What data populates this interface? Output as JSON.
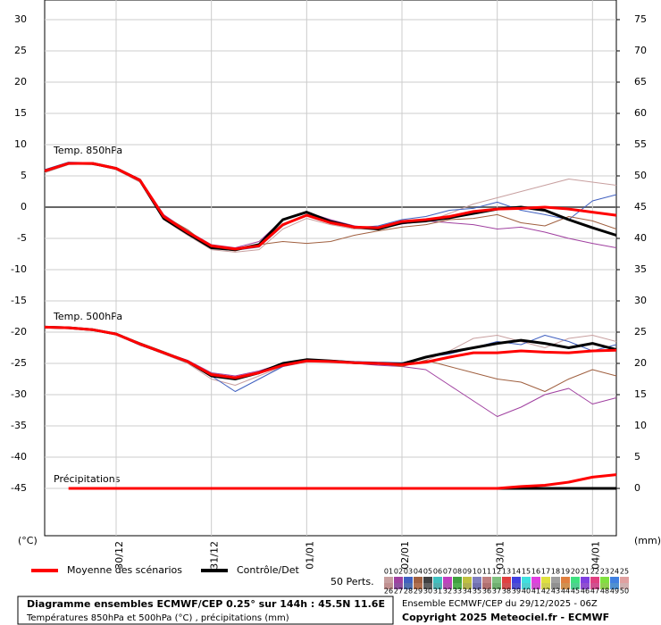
{
  "chart_data": {
    "type": "line",
    "x": [
      0,
      6,
      12,
      18,
      24,
      30,
      36,
      42,
      48,
      54,
      60,
      66,
      72,
      78,
      84,
      90,
      96,
      102,
      108,
      114,
      120,
      126,
      132,
      138,
      144
    ],
    "xlim": [
      0,
      144
    ],
    "xticks": [
      {
        "value": 18,
        "label": "30/12"
      },
      {
        "value": 42,
        "label": "31/12"
      },
      {
        "value": 66,
        "label": "01/01"
      },
      {
        "value": 90,
        "label": "02/01"
      },
      {
        "value": 114,
        "label": "03/01"
      },
      {
        "value": 138,
        "label": "04/01"
      }
    ],
    "ylim": [
      -52.57,
      33.14
    ],
    "yticks": [
      30,
      25,
      20,
      15,
      10,
      5,
      0,
      -5,
      -10,
      -15,
      -20,
      -25,
      -30,
      -35,
      -40,
      -45
    ],
    "y2lim": [
      -7.57,
      78.14
    ],
    "y2ticks": [
      75,
      70,
      65,
      60,
      55,
      50,
      45,
      40,
      35,
      30,
      25,
      20,
      15,
      10,
      5,
      0
    ],
    "y_unit": "(°C)",
    "y2_unit": "(mm)",
    "grid": true,
    "group_labels": {
      "t850": "Temp. 850hPa",
      "t500": "Temp. 500hPa",
      "precip": "Précipitations"
    },
    "series": [
      {
        "name": "Moyenne des scénarios",
        "color": "#ff0000",
        "t850": [
          5.8,
          7.0,
          7.0,
          6.2,
          4.3,
          -1.5,
          -4.0,
          -6.2,
          -6.7,
          -6.2,
          -2.8,
          -1.3,
          -2.5,
          -3.2,
          -3.3,
          -2.3,
          -2.0,
          -1.5,
          -0.7,
          -0.3,
          -0.2,
          0.0,
          -0.3,
          -0.8,
          -1.3
        ],
        "t500": [
          -19.2,
          -19.3,
          -19.6,
          -20.3,
          -21.9,
          -23.3,
          -24.7,
          -26.8,
          -27.3,
          -26.5,
          -25.3,
          -24.6,
          -24.7,
          -24.9,
          -25.0,
          -25.2,
          -24.8,
          -24.0,
          -23.3,
          -23.3,
          -23.0,
          -23.2,
          -23.3,
          -23.0,
          -22.9
        ],
        "precip": [
          null,
          0,
          0,
          0,
          0,
          0,
          0,
          0,
          0,
          0,
          0,
          0,
          0,
          0,
          0,
          0,
          0,
          0,
          0,
          0,
          0.3,
          0.5,
          1.0,
          1.8,
          2.2
        ]
      },
      {
        "name": "Contrôle/Det",
        "color": "#000000",
        "t850": [
          5.8,
          7.0,
          7.0,
          6.2,
          4.3,
          -1.8,
          -4.2,
          -6.5,
          -6.8,
          -6.0,
          -2.0,
          -0.8,
          -2.3,
          -3.2,
          -3.5,
          -2.5,
          -2.2,
          -1.7,
          -1.0,
          -0.3,
          0.0,
          -0.5,
          -2.0,
          -3.3,
          -4.5
        ],
        "t500": [
          -19.2,
          -19.3,
          -19.6,
          -20.3,
          -21.9,
          -23.3,
          -24.7,
          -27.0,
          -27.5,
          -26.5,
          -25.0,
          -24.4,
          -24.6,
          -24.9,
          -25.0,
          -25.1,
          -24.0,
          -23.2,
          -22.5,
          -21.8,
          -21.3,
          -21.8,
          -22.5,
          -21.8,
          -22.8
        ],
        "precip": [
          null,
          null,
          null,
          null,
          null,
          null,
          null,
          null,
          null,
          null,
          null,
          null,
          null,
          null,
          null,
          0,
          0,
          0,
          0,
          0,
          0,
          0,
          0,
          0,
          0
        ]
      }
    ],
    "perturbations": {
      "label": "50 Perts.",
      "members": [
        {
          "name": "01",
          "color": "#c8a0a0",
          "t850": [
            5.5,
            6.8,
            6.9,
            6.0,
            4.0,
            -2.0,
            -4.5,
            -6.8,
            -7.2,
            -6.8,
            -3.5,
            -1.8,
            -2.8,
            -3.5,
            -3.2,
            -2.6,
            -2.4,
            -1.0,
            0.5,
            1.5,
            2.5,
            3.5,
            4.5,
            4.0,
            3.5
          ],
          "t500": [
            -19.2,
            -19.3,
            -19.6,
            -20.3,
            -22.0,
            -23.5,
            -25.0,
            -27.5,
            -28.5,
            -27.0,
            -25.5,
            -24.8,
            -24.6,
            -24.8,
            -25.2,
            -25.5,
            -24.5,
            -23.0,
            -21.0,
            -20.5,
            -21.5,
            -22.5,
            -21.0,
            -20.5,
            -21.5
          ]
        },
        {
          "name": "02",
          "color": "#a040a0",
          "t850": [
            5.9,
            7.1,
            7.0,
            6.3,
            4.5,
            -1.2,
            -3.8,
            -6.0,
            -6.5,
            -5.5,
            -2.0,
            -0.8,
            -2.0,
            -3.0,
            -3.4,
            -2.7,
            -2.2,
            -2.5,
            -2.8,
            -3.5,
            -3.2,
            -4.0,
            -5.0,
            -5.8,
            -6.5
          ],
          "t500": [
            -19.2,
            -19.3,
            -19.6,
            -20.2,
            -21.8,
            -23.2,
            -24.5,
            -26.5,
            -27.0,
            -26.2,
            -25.0,
            -24.5,
            -24.8,
            -25.0,
            -25.3,
            -25.5,
            -26.0,
            -28.5,
            -31.0,
            -33.5,
            -32.0,
            -30.0,
            -29.0,
            -31.5,
            -30.5
          ]
        },
        {
          "name": "03",
          "color": "#4060c0",
          "t850": [
            6.0,
            7.2,
            7.1,
            6.1,
            4.2,
            -1.8,
            -4.2,
            -6.3,
            -6.9,
            -6.4,
            -3.0,
            -1.2,
            -2.3,
            -3.3,
            -3.0,
            -2.0,
            -1.5,
            -0.5,
            -0.2,
            0.8,
            -0.5,
            -1.2,
            -2.0,
            1.0,
            2.0
          ],
          "t500": [
            -19.2,
            -19.3,
            -19.6,
            -20.4,
            -22.1,
            -23.4,
            -24.8,
            -27.0,
            -29.5,
            -27.5,
            -25.5,
            -24.7,
            -24.5,
            -24.7,
            -24.8,
            -24.9,
            -24.0,
            -23.5,
            -22.5,
            -21.5,
            -22.0,
            -20.5,
            -21.5,
            -23.0,
            -22.0
          ]
        },
        {
          "name": "04",
          "color": "#a06040",
          "t850": [
            5.7,
            6.9,
            6.8,
            6.2,
            4.4,
            -1.4,
            -3.6,
            -6.5,
            -7.0,
            -6.0,
            -5.5,
            -5.8,
            -5.5,
            -4.5,
            -3.8,
            -3.2,
            -2.8,
            -2.0,
            -1.8,
            -1.2,
            -2.5,
            -3.0,
            -1.5,
            -2.2,
            -3.5
          ],
          "t500": [
            -19.2,
            -19.3,
            -19.5,
            -20.2,
            -21.7,
            -23.1,
            -24.6,
            -26.6,
            -27.2,
            -26.4,
            -25.2,
            -24.4,
            -24.8,
            -25.0,
            -25.0,
            -25.5,
            -24.5,
            -25.5,
            -26.5,
            -27.5,
            -28.0,
            -29.5,
            -27.5,
            -26.0,
            -27.0
          ]
        },
        {
          "name": "05",
          "color": "#404040"
        },
        {
          "name": "06",
          "color": "#40c0c0"
        },
        {
          "name": "07",
          "color": "#c040c0"
        },
        {
          "name": "08",
          "color": "#40a040"
        },
        {
          "name": "09",
          "color": "#c0c040"
        },
        {
          "name": "10",
          "color": "#8080c0"
        },
        {
          "name": "11",
          "color": "#c08080"
        },
        {
          "name": "12",
          "color": "#80c080"
        },
        {
          "name": "13",
          "color": "#e04040"
        },
        {
          "name": "14",
          "color": "#4040e0"
        },
        {
          "name": "15",
          "color": "#40e0e0"
        },
        {
          "name": "16",
          "color": "#e040e0"
        },
        {
          "name": "17",
          "color": "#e0e040"
        },
        {
          "name": "18",
          "color": "#a0a0a0"
        },
        {
          "name": "19",
          "color": "#e08040"
        },
        {
          "name": "20",
          "color": "#40e080"
        },
        {
          "name": "21",
          "color": "#8040e0"
        },
        {
          "name": "22",
          "color": "#e04080"
        },
        {
          "name": "23",
          "color": "#80e040"
        },
        {
          "name": "24",
          "color": "#4080e0"
        },
        {
          "name": "25",
          "color": "#e0a0a0"
        },
        {
          "name": "26",
          "color": "#c09090"
        },
        {
          "name": "27",
          "color": "#9050a0"
        },
        {
          "name": "28",
          "color": "#5070b0"
        },
        {
          "name": "29",
          "color": "#b07050"
        },
        {
          "name": "30",
          "color": "#606060"
        },
        {
          "name": "31",
          "color": "#50b0b0"
        },
        {
          "name": "32",
          "color": "#b050b0"
        },
        {
          "name": "33",
          "color": "#50b050"
        },
        {
          "name": "34",
          "color": "#b0b050"
        },
        {
          "name": "35",
          "color": "#7070b0"
        },
        {
          "name": "36",
          "color": "#b07070"
        },
        {
          "name": "37",
          "color": "#70b070"
        },
        {
          "name": "38",
          "color": "#d05050"
        },
        {
          "name": "39",
          "color": "#5050d0"
        },
        {
          "name": "40",
          "color": "#50d0d0"
        },
        {
          "name": "41",
          "color": "#d050d0"
        },
        {
          "name": "42",
          "color": "#d0d050"
        },
        {
          "name": "43",
          "color": "#909090"
        },
        {
          "name": "44",
          "color": "#d09050"
        },
        {
          "name": "45",
          "color": "#50d090"
        },
        {
          "name": "46",
          "color": "#9050d0"
        },
        {
          "name": "47",
          "color": "#d05090"
        },
        {
          "name": "48",
          "color": "#90d050"
        },
        {
          "name": "49",
          "color": "#5090d0"
        },
        {
          "name": "50",
          "color": "#d0b0b0"
        }
      ]
    },
    "footer": {
      "title": "Diagramme ensembles ECMWF/CEP 0.25° sur 144h : 45.5N 11.6E",
      "subtitle": "Températures 850hPa et 500hPa (°C) , précipitations (mm)",
      "run": "Ensemble ECMWF/CEP du 29/12/2025 - 06Z",
      "copyright": "Copyright 2025 Meteociel.fr - ECMWF"
    }
  }
}
